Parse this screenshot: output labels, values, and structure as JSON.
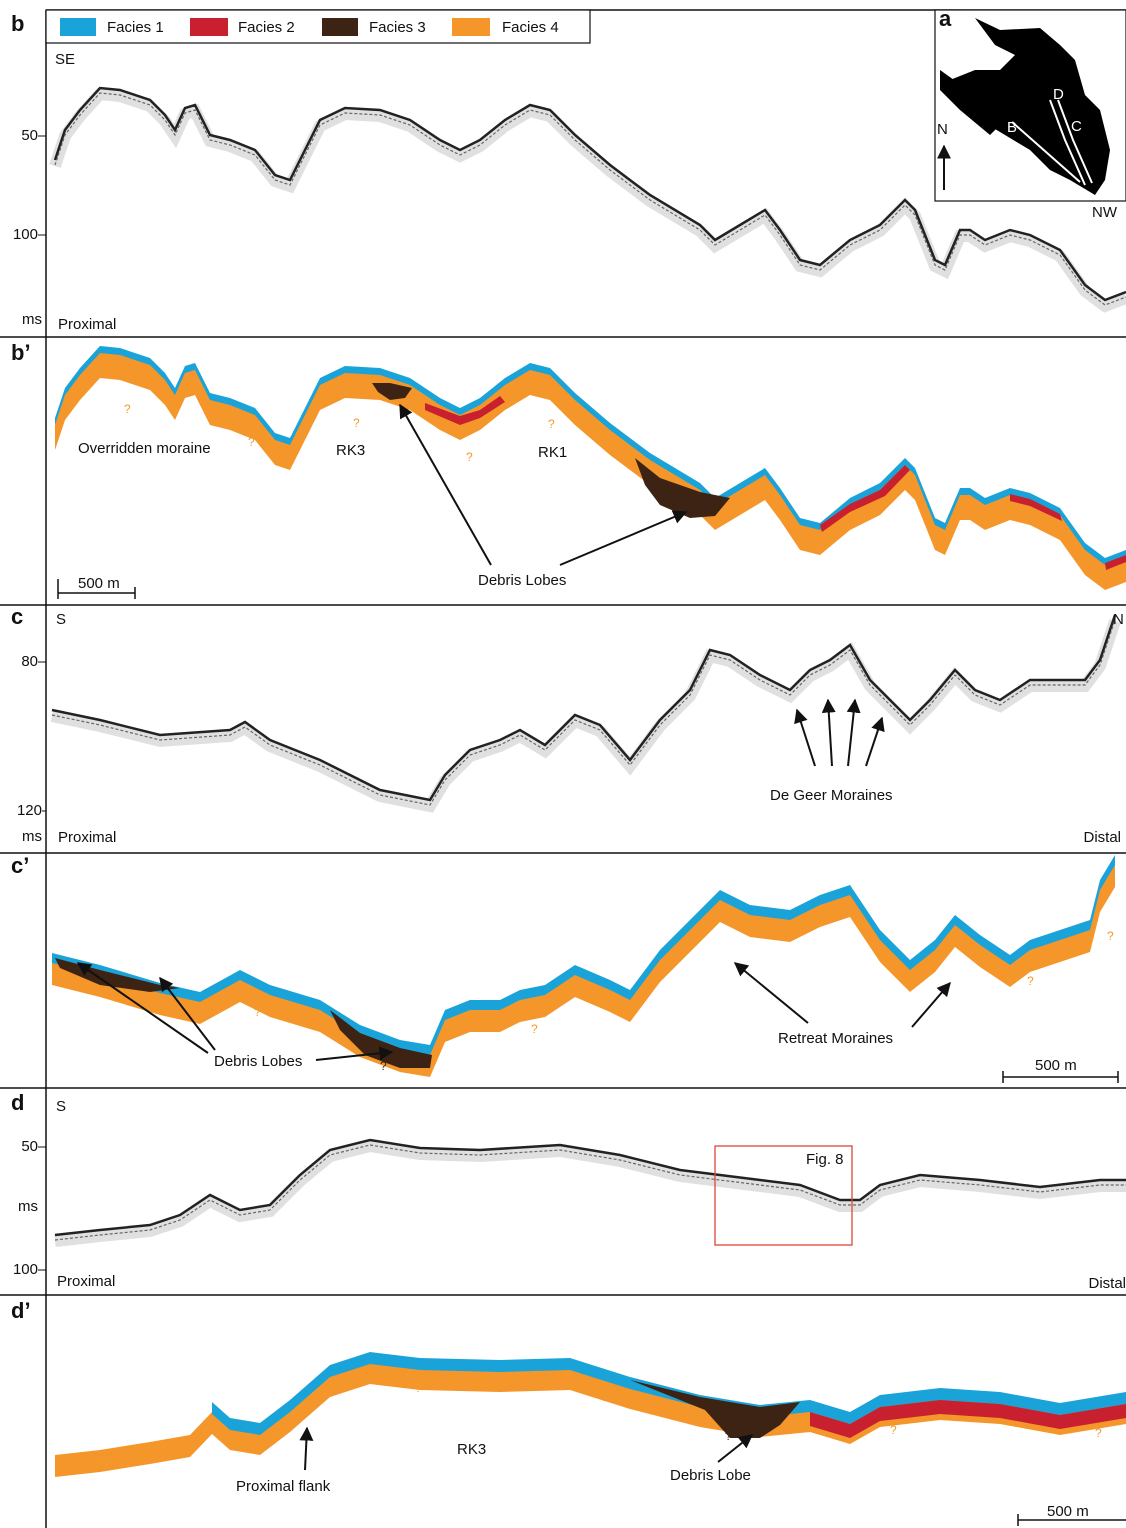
{
  "legend": [
    {
      "label": "Facies 1",
      "color": "#1aa3d9"
    },
    {
      "label": "Facies 2",
      "color": "#c8202f"
    },
    {
      "label": "Facies 3",
      "color": "#3d2314"
    },
    {
      "label": "Facies 4",
      "color": "#f5962a"
    }
  ],
  "inset": {
    "letter": "a",
    "north": "N",
    "lines": [
      "D",
      "B",
      "C"
    ]
  },
  "panels": [
    {
      "letter": "b",
      "start": "SE",
      "end": "NW",
      "ticks": [
        "50",
        "100"
      ],
      "unit": "ms",
      "side": "Proximal"
    },
    {
      "letter": "b’",
      "labels": [
        "Overridden moraine",
        "RK3",
        "RK1",
        "Debris Lobes"
      ],
      "scale": "500 m",
      "question_marks": [
        "?",
        "?",
        "?",
        "?",
        "?"
      ]
    },
    {
      "letter": "c",
      "start": "S",
      "end": "N",
      "ticks": [
        "80",
        "120"
      ],
      "unit": "ms",
      "side": "Proximal",
      "side_end": "Distal",
      "labels": [
        "De Geer Moraines"
      ]
    },
    {
      "letter": "c’",
      "labels": [
        "Debris Lobes",
        "Retreat Moraines"
      ],
      "scale": "500 m",
      "question_marks": [
        "?",
        "?",
        "?",
        "?",
        "?"
      ]
    },
    {
      "letter": "d",
      "start": "S",
      "ticks": [
        "50",
        "100"
      ],
      "unit": "ms",
      "side": "Proximal",
      "side_end": "Distal",
      "labels": [
        "Fig. 8"
      ]
    },
    {
      "letter": "d’",
      "labels": [
        "RK3",
        "Proximal flank",
        "Debris Lobe"
      ],
      "scale": "500 m",
      "question_marks": [
        "?",
        "?",
        "?",
        "?",
        "?",
        "?"
      ]
    }
  ]
}
